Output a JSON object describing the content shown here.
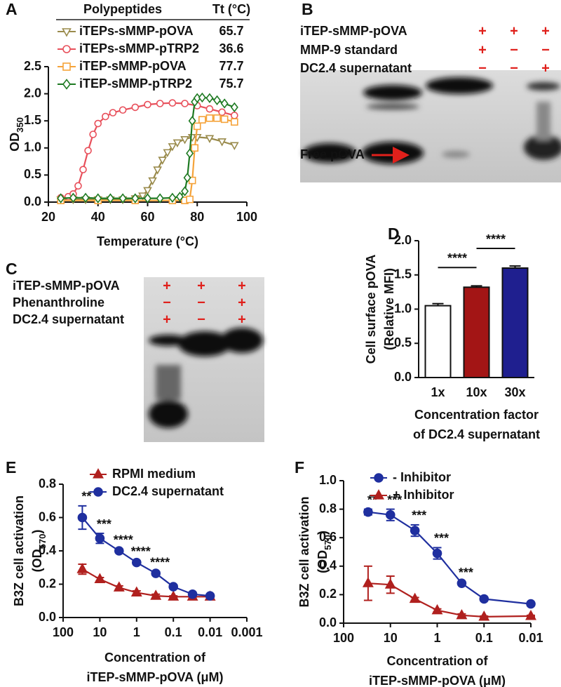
{
  "panel_labels": [
    "A",
    "B",
    "C",
    "D",
    "E",
    "F"
  ],
  "gel_b": {
    "rows": [
      {
        "label": "iTEP-sMMP-pOVA",
        "lanes": [
          "+",
          "+",
          "+"
        ]
      },
      {
        "label": "MMP-9 standard",
        "lanes": [
          "+",
          "−",
          "−"
        ]
      },
      {
        "label": "DC2.4 supernatant",
        "lanes": [
          "−",
          "−",
          "+"
        ]
      }
    ],
    "band_label": "Free pOVA"
  },
  "gel_c": {
    "rows": [
      {
        "label": "iTEP-sMMP-pOVA",
        "lanes": [
          "+",
          "+",
          "+"
        ]
      },
      {
        "label": "Phenanthroline",
        "lanes": [
          "−",
          "−",
          "+"
        ]
      },
      {
        "label": "DC2.4 supernatant",
        "lanes": [
          "+",
          "−",
          "+"
        ]
      }
    ]
  },
  "chart_data": [
    {
      "type": "line",
      "x_label": "Temperature (°C)",
      "y_label": {
        "text": "OD",
        "sub": "350"
      },
      "xlim": [
        20,
        100
      ],
      "xticks": [
        20,
        40,
        60,
        80,
        100
      ],
      "ylim": [
        0,
        2.5
      ],
      "yticks": [
        {
          "value": 0,
          "label": "0.0"
        },
        0.5,
        {
          "value": 1,
          "label": "1.0"
        },
        1.5,
        {
          "value": 2,
          "label": "2.0"
        },
        2.5
      ],
      "legend_header": [
        "Polypeptides",
        "Tt (°C)"
      ],
      "series": [
        {
          "name": "iTEPs-sMMP-pOVA",
          "tt": 65.7,
          "color": "#9a8b4c",
          "marker": "triangle-down",
          "filled": false,
          "x": [
            25,
            30,
            35,
            40,
            45,
            50,
            55,
            58,
            60,
            62,
            64,
            66,
            68,
            70,
            72,
            75,
            78,
            80,
            85,
            90,
            95
          ],
          "values": [
            0.05,
            0.05,
            0.05,
            0.05,
            0.05,
            0.05,
            0.07,
            0.12,
            0.22,
            0.4,
            0.6,
            0.78,
            0.92,
            1.03,
            1.1,
            1.16,
            1.2,
            1.2,
            1.18,
            1.12,
            1.05
          ]
        },
        {
          "name": "iTEPs-sMMP-pTRP2",
          "tt": 36.6,
          "color": "#e8505b",
          "marker": "circle",
          "filled": false,
          "x": [
            25,
            28,
            30,
            32,
            34,
            36,
            38,
            40,
            43,
            46,
            50,
            55,
            60,
            65,
            70,
            75,
            80,
            85,
            90,
            95
          ],
          "values": [
            0.08,
            0.1,
            0.15,
            0.3,
            0.6,
            0.95,
            1.25,
            1.45,
            1.58,
            1.65,
            1.7,
            1.75,
            1.8,
            1.82,
            1.83,
            1.82,
            1.78,
            1.72,
            1.66,
            1.6
          ]
        },
        {
          "name": "iTEP-sMMP-pOVA",
          "tt": 77.7,
          "color": "#f5a33a",
          "marker": "square",
          "filled": false,
          "x": [
            25,
            40,
            55,
            70,
            75,
            77,
            78,
            79,
            80,
            82,
            85,
            88,
            91,
            95
          ],
          "values": [
            0.03,
            0.03,
            0.03,
            0.03,
            0.03,
            0.05,
            0.4,
            1.0,
            1.4,
            1.52,
            1.55,
            1.55,
            1.53,
            1.48
          ]
        },
        {
          "name": "iTEP-sMMP-pTRP2",
          "tt": 75.7,
          "color": "#1e7a22",
          "marker": "diamond",
          "filled": false,
          "x": [
            25,
            30,
            35,
            40,
            45,
            50,
            55,
            60,
            65,
            70,
            73,
            75,
            76,
            77,
            78,
            79,
            80,
            82,
            85,
            88,
            91,
            95
          ],
          "values": [
            0.07,
            0.08,
            0.08,
            0.07,
            0.07,
            0.07,
            0.07,
            0.07,
            0.07,
            0.08,
            0.1,
            0.2,
            0.45,
            0.9,
            1.5,
            1.85,
            1.92,
            1.93,
            1.92,
            1.88,
            1.82,
            1.75
          ]
        }
      ]
    },
    {
      "type": "bar",
      "categories": [
        "1x",
        "10x",
        "30x"
      ],
      "values": [
        1.05,
        1.32,
        1.6
      ],
      "errors": [
        0.03,
        0.02,
        0.03
      ],
      "colors": [
        "#ffffff",
        "#a31515",
        "#1f1f8f"
      ],
      "ylim": [
        0,
        2
      ],
      "yticks": [
        {
          "value": 0,
          "label": "0.0"
        },
        0.5,
        {
          "value": 1,
          "label": "1.0"
        },
        1.5,
        {
          "value": 2,
          "label": "2.0"
        }
      ],
      "y_label": [
        "Cell surface pOVA",
        "(Relative MFI)"
      ],
      "x_label": [
        "Concentration factor",
        "of DC2.4 supernatant"
      ],
      "significance": [
        "****",
        "****"
      ]
    },
    {
      "type": "line",
      "xscale": "log",
      "legend": "top-left",
      "xlim": [
        100,
        0.001
      ],
      "xticks": [
        100,
        10,
        1,
        0.1,
        0.01,
        0.001
      ],
      "ylim": [
        0,
        0.8
      ],
      "yticks": [
        {
          "value": 0,
          "label": "0.0"
        },
        0.2,
        0.4,
        0.6,
        0.8
      ],
      "y_label": [
        "B3Z cell activation",
        {
          "text": "(OD",
          "sub": "570",
          "end": ")"
        }
      ],
      "x_label": [
        "Concentration of",
        "iTEP-sMMP-pOVA (μM)"
      ],
      "series": [
        {
          "name": "RPMI medium",
          "color": "#b0201e",
          "marker": "triangle-up",
          "filled": true,
          "x": [
            30,
            10,
            3,
            1,
            0.3,
            0.1,
            0.03,
            0.01
          ],
          "values": [
            0.29,
            0.23,
            0.18,
            0.15,
            0.13,
            0.125,
            0.125,
            0.125
          ],
          "errors": [
            0.03,
            0.01,
            0.01,
            0.01,
            0.01,
            0.005,
            0.005,
            0.005
          ]
        },
        {
          "name": "DC2.4 supernatant",
          "color": "#1f2f9f",
          "marker": "circle",
          "filled": true,
          "x": [
            30,
            10,
            3,
            1,
            0.3,
            0.1,
            0.03,
            0.01
          ],
          "values": [
            0.6,
            0.475,
            0.4,
            0.33,
            0.265,
            0.185,
            0.14,
            0.13
          ],
          "errors": [
            0.07,
            0.03,
            0.01,
            0.01,
            0.01,
            0.01,
            0.01,
            0.01
          ],
          "significance": [
            "**",
            "***",
            "****",
            "****",
            "****",
            null,
            null,
            null
          ]
        }
      ]
    },
    {
      "type": "line",
      "xscale": "log",
      "legend": "top-left",
      "xlim": [
        100,
        0.01
      ],
      "xticks": [
        100,
        10,
        1,
        0.1,
        0.01
      ],
      "ylim": [
        0,
        1
      ],
      "yticks": [
        {
          "value": 0,
          "label": "0.0"
        },
        0.2,
        0.4,
        0.6,
        0.8,
        {
          "value": 1,
          "label": "1.0"
        }
      ],
      "y_label": [
        "B3Z cell activation",
        {
          "text": "(OD",
          "sub": "570",
          "end": ")"
        }
      ],
      "x_label": [
        "Concentration of",
        "iTEP-sMMP-pOVA (μM)"
      ],
      "series": [
        {
          "name": "- Inhibitor",
          "color": "#1f2f9f",
          "marker": "circle",
          "filled": true,
          "x": [
            30,
            10,
            3,
            1,
            0.3,
            0.1,
            0.01
          ],
          "values": [
            0.78,
            0.76,
            0.65,
            0.49,
            0.28,
            0.17,
            0.135
          ],
          "errors": [
            0.02,
            0.04,
            0.04,
            0.04,
            0.01,
            0.01,
            0.01
          ],
          "significance": [
            "**",
            "***",
            "***",
            "***",
            "***",
            null,
            null
          ]
        },
        {
          "name": "+ Inhibitor",
          "color": "#b0201e",
          "marker": "triangle-up",
          "filled": true,
          "x": [
            30,
            10,
            3,
            1,
            0.3,
            0.1,
            0.01
          ],
          "values": [
            0.28,
            0.27,
            0.17,
            0.09,
            0.055,
            0.045,
            0.05
          ],
          "errors": [
            0.12,
            0.06,
            0.01,
            0.01,
            0.01,
            0.005,
            0.005
          ]
        }
      ]
    }
  ]
}
